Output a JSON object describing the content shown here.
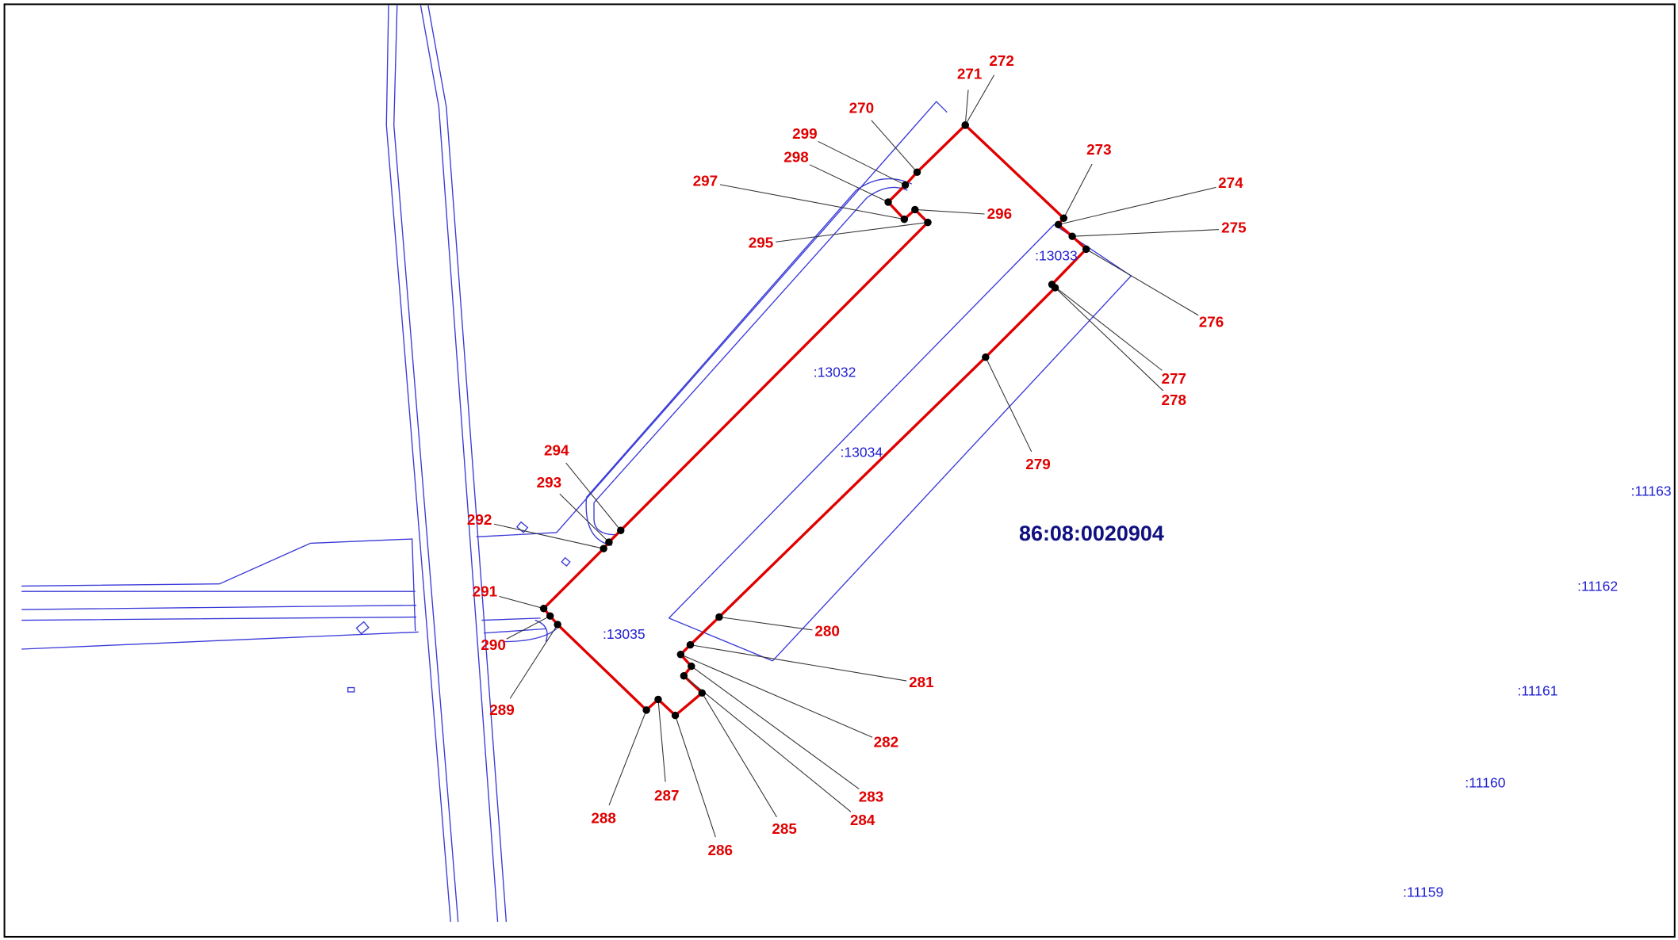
{
  "quarter": "86:08:0020904",
  "parcels": [
    ":13032",
    ":13033",
    ":13034",
    ":13035",
    ":11163",
    ":11162",
    ":11161",
    ":11160",
    ":11159"
  ],
  "points": [
    {
      "label": "270"
    },
    {
      "label": "271"
    },
    {
      "label": "272"
    },
    {
      "label": "273"
    },
    {
      "label": "274"
    },
    {
      "label": "275"
    },
    {
      "label": "276"
    },
    {
      "label": "277"
    },
    {
      "label": "278"
    },
    {
      "label": "279"
    },
    {
      "label": "280"
    },
    {
      "label": "281"
    },
    {
      "label": "282"
    },
    {
      "label": "283"
    },
    {
      "label": "284"
    },
    {
      "label": "285"
    },
    {
      "label": "286"
    },
    {
      "label": "287"
    },
    {
      "label": "288"
    },
    {
      "label": "289"
    },
    {
      "label": "290"
    },
    {
      "label": "291"
    },
    {
      "label": "292"
    },
    {
      "label": "293"
    },
    {
      "label": "294"
    },
    {
      "label": "295"
    },
    {
      "label": "296"
    },
    {
      "label": "297"
    },
    {
      "label": "298"
    },
    {
      "label": "299"
    }
  ]
}
